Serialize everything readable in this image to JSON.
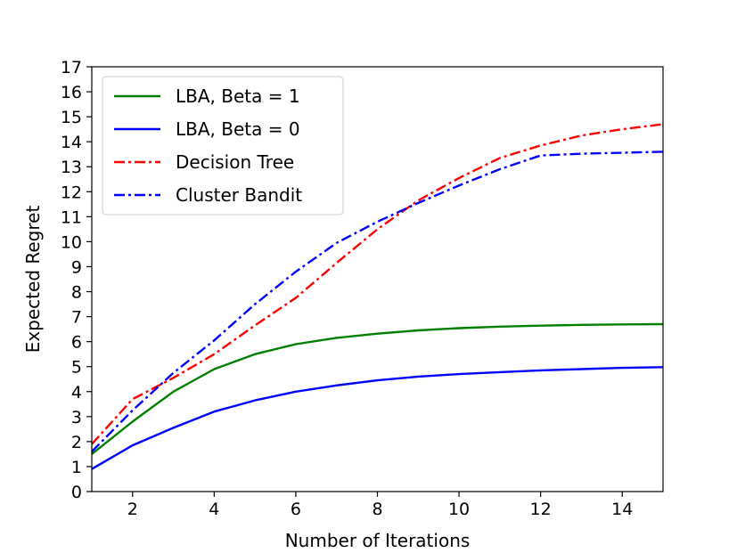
{
  "chart_data": {
    "type": "line",
    "title": "",
    "xlabel": "Number of Iterations",
    "ylabel": "Expected Regret",
    "xlim": [
      1,
      15
    ],
    "ylim": [
      0,
      17
    ],
    "xticks": [
      2,
      4,
      6,
      8,
      10,
      12,
      14
    ],
    "yticks": [
      0,
      1,
      2,
      3,
      4,
      5,
      6,
      7,
      8,
      9,
      10,
      11,
      12,
      13,
      14,
      15,
      16,
      17
    ],
    "grid": false,
    "legend_position": "upper-left",
    "x": [
      1,
      2,
      3,
      4,
      5,
      6,
      7,
      8,
      9,
      10,
      11,
      12,
      13,
      14,
      15
    ],
    "series": [
      {
        "name": "LBA, Beta = 1",
        "color": "#008000",
        "style": "solid",
        "values": [
          1.5,
          2.8,
          4.0,
          4.9,
          5.5,
          5.9,
          6.15,
          6.32,
          6.45,
          6.54,
          6.6,
          6.64,
          6.67,
          6.69,
          6.7
        ]
      },
      {
        "name": "LBA, Beta = 0",
        "color": "#0000ff",
        "style": "solid",
        "values": [
          0.9,
          1.85,
          2.55,
          3.2,
          3.65,
          4.0,
          4.25,
          4.45,
          4.6,
          4.7,
          4.78,
          4.85,
          4.9,
          4.95,
          4.98
        ]
      },
      {
        "name": "Decision Tree",
        "color": "#ff0000",
        "style": "dashdot",
        "values": [
          1.9,
          3.7,
          4.55,
          5.5,
          6.65,
          7.75,
          9.15,
          10.5,
          11.65,
          12.55,
          13.35,
          13.85,
          14.25,
          14.5,
          14.7
        ]
      },
      {
        "name": "Cluster Bandit",
        "color": "#0000ff",
        "style": "dashdot",
        "values": [
          1.6,
          3.25,
          4.75,
          6.05,
          7.5,
          8.8,
          9.95,
          10.8,
          11.55,
          12.25,
          12.9,
          13.45,
          13.52,
          13.56,
          13.6
        ]
      }
    ]
  }
}
